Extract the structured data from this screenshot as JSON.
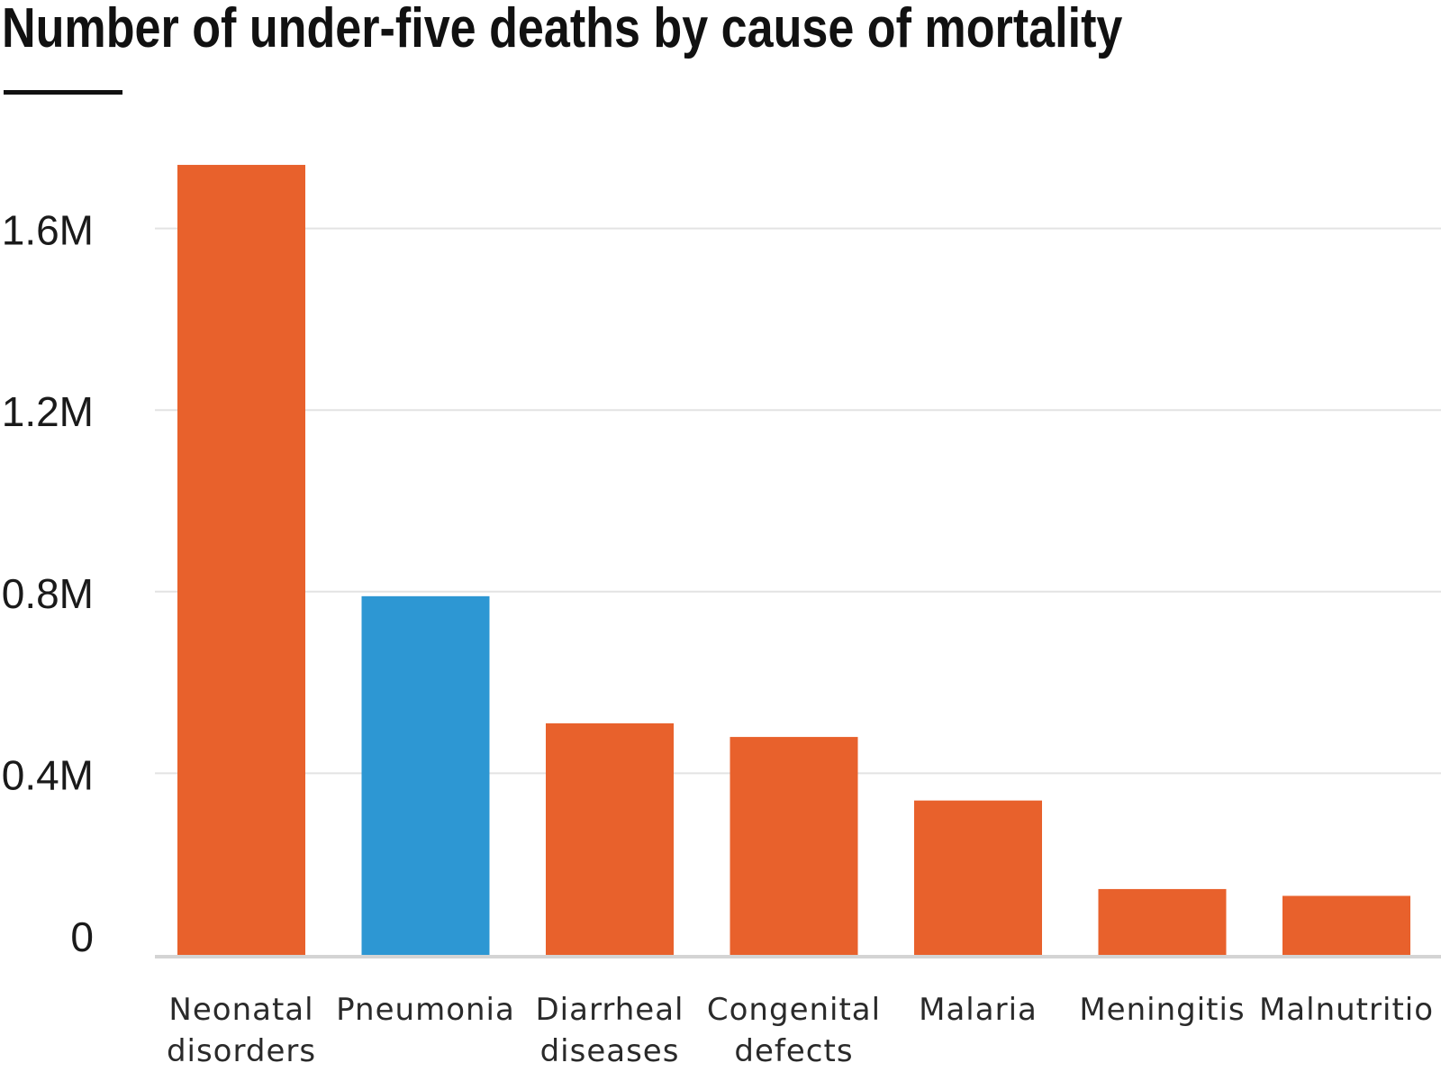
{
  "chart_data": {
    "type": "bar",
    "title": "Number of under-five deaths by cause of mortality",
    "xlabel": "",
    "ylabel": "",
    "ylim": [
      0,
      1.75
    ],
    "yticks": [
      {
        "value": 0,
        "label": "0"
      },
      {
        "value": 0.4,
        "label": "0.4M"
      },
      {
        "value": 0.8,
        "label": "0.8M"
      },
      {
        "value": 1.2,
        "label": "1.2M"
      },
      {
        "value": 1.6,
        "label": "1.6M"
      }
    ],
    "grid": true,
    "categories": [
      [
        "Neonatal",
        "disorders"
      ],
      [
        "Pneumonia"
      ],
      [
        "Diarrheal",
        "diseases"
      ],
      [
        "Congenital",
        "defects"
      ],
      [
        "Malaria"
      ],
      [
        "Meningitis"
      ],
      [
        "Malnutritio"
      ]
    ],
    "values": [
      1.74,
      0.79,
      0.51,
      0.48,
      0.34,
      0.145,
      0.13
    ],
    "unit": "millions of deaths",
    "colors": [
      "#E8612C",
      "#2D97D3",
      "#E8612C",
      "#E8612C",
      "#E8612C",
      "#E8612C",
      "#E8612C"
    ],
    "grid_color": "#e3e3e3",
    "axis_color": "#d4d4d4"
  }
}
